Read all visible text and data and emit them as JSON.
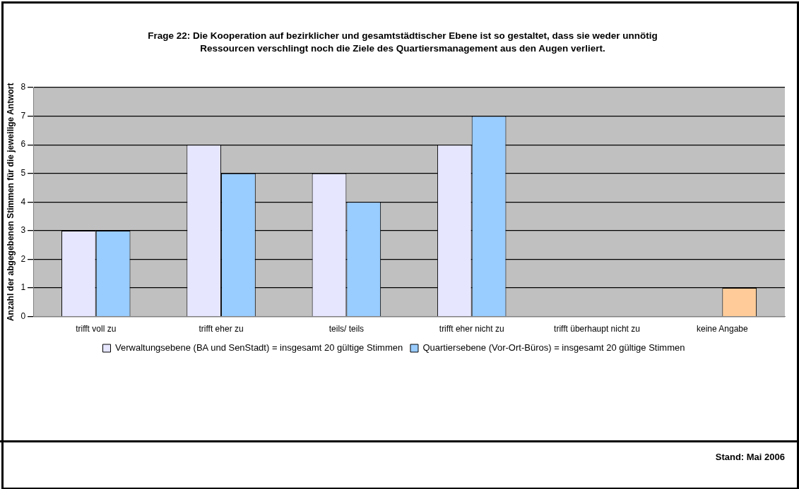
{
  "chart_data": {
    "type": "bar",
    "title": "Frage 22: Die Kooperation auf bezirklicher und gesamtstädtischer Ebene ist so gestaltet, dass sie weder unnötig Ressourcen verschlingt noch die Ziele des Quartiersmanagement aus den Augen verliert.",
    "ylabel": "Anzahl der abgegebenen Stimmen für die jeweilige Antwort",
    "categories": [
      "trifft voll zu",
      "trifft eher zu",
      "teils/ teils",
      "trifft eher nicht zu",
      "trifft überhaupt nicht zu",
      "keine Angabe"
    ],
    "series": [
      {
        "name": "Verwaltungsebene (BA und SenStadt) = insgesamt 20 gültige Stimmen",
        "color": "#e6e6ff",
        "values": [
          3,
          6,
          5,
          6,
          0,
          0
        ]
      },
      {
        "name": "Quartiersebene (Vor-Ort-Büros) = insgesamt 20 gültige Stimmen",
        "color": "#99ccff",
        "colors": [
          "#99ccff",
          "#99ccff",
          "#99ccff",
          "#99ccff",
          "#99ccff",
          "#ffcc99"
        ],
        "values": [
          3,
          5,
          4,
          7,
          0,
          1
        ]
      }
    ],
    "ylim": [
      0,
      8
    ],
    "yticks": [
      0,
      1,
      2,
      3,
      4,
      5,
      6,
      7,
      8
    ],
    "grid": "y",
    "legend": "bottom",
    "annotations": [
      "Stand: Mai 2006"
    ]
  }
}
